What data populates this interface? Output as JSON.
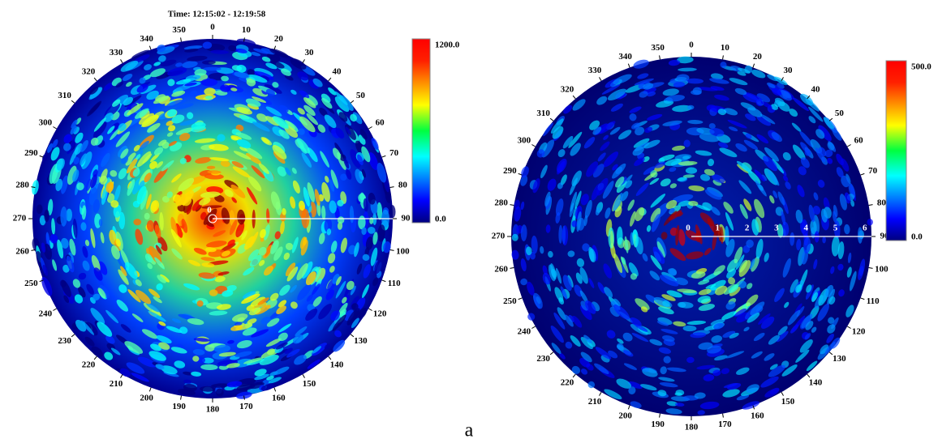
{
  "panels": [
    {
      "title": "Time: 12:15:02  - 12:19:58",
      "angle_labels": [
        0,
        10,
        20,
        30,
        40,
        50,
        60,
        70,
        80,
        90,
        100,
        110,
        120,
        130,
        140,
        150,
        160,
        170,
        180,
        190,
        200,
        210,
        220,
        230,
        240,
        250,
        260,
        270,
        280,
        290,
        300,
        310,
        320,
        330,
        340,
        350
      ],
      "colorbar": {
        "max": "1200.0",
        "min": "0.0"
      },
      "range_labels": [
        0
      ]
    },
    {
      "angle_labels": [
        0,
        10,
        20,
        30,
        40,
        50,
        60,
        70,
        80,
        90,
        100,
        110,
        120,
        130,
        140,
        150,
        160,
        170,
        180,
        190,
        200,
        210,
        220,
        230,
        240,
        250,
        260,
        270,
        280,
        290,
        300,
        310,
        320,
        330,
        340,
        350
      ],
      "colorbar": {
        "max": "500.0",
        "min": "0.0"
      },
      "range_labels": [
        0,
        1,
        2,
        3,
        4,
        5,
        6
      ]
    }
  ],
  "caption": "a"
}
